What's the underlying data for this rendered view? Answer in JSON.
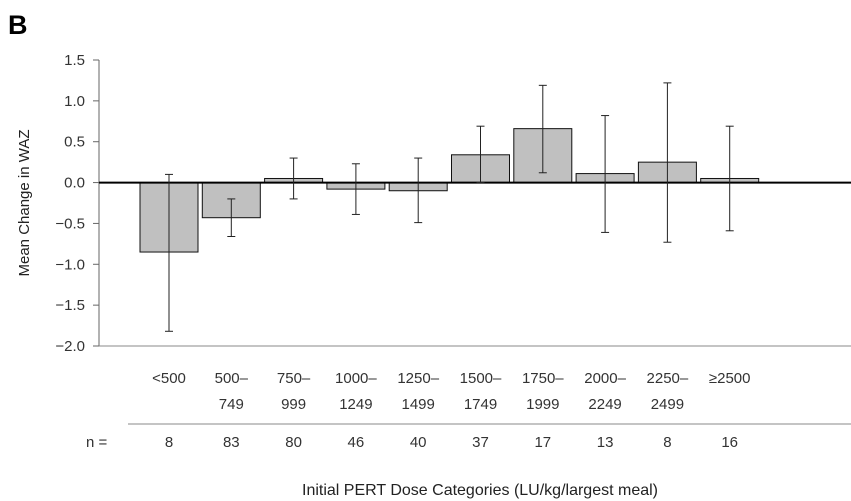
{
  "panel_label": "B",
  "n_label": "n =",
  "chart_data": {
    "type": "bar",
    "title": "",
    "ylabel": "Mean Change in WAZ",
    "xlabel": "Initial PERT Dose Categories (LU/kg/largest meal)",
    "ylim": [
      -2.0,
      1.5
    ],
    "yticks": [
      "1.5",
      "1.0",
      "0.5",
      "0.0",
      "−0.5",
      "−1.0",
      "−1.5",
      "−2.0"
    ],
    "ytick_values": [
      1.5,
      1.0,
      0.5,
      0.0,
      -0.5,
      -1.0,
      -1.5,
      -2.0
    ],
    "grid": false,
    "bar_color": "#c0c0c0",
    "categories": [
      {
        "line1": "<500",
        "line2": ""
      },
      {
        "line1": "500–",
        "line2": "749"
      },
      {
        "line1": "750–",
        "line2": "999"
      },
      {
        "line1": "1000–",
        "line2": "1249"
      },
      {
        "line1": "1250–",
        "line2": "1499"
      },
      {
        "line1": "1500–",
        "line2": "1749"
      },
      {
        "line1": "1750–",
        "line2": "1999"
      },
      {
        "line1": "2000–",
        "line2": "2249"
      },
      {
        "line1": "2250–",
        "line2": "2499"
      },
      {
        "line1": "≥2500",
        "line2": ""
      }
    ],
    "values": [
      -0.85,
      -0.43,
      0.05,
      -0.08,
      -0.1,
      0.34,
      0.66,
      0.11,
      0.25,
      0.05
    ],
    "error_low": [
      -1.82,
      -0.66,
      -0.2,
      -0.39,
      -0.49,
      0.0,
      0.12,
      -0.61,
      -0.73,
      -0.59
    ],
    "error_high": [
      0.1,
      -0.2,
      0.3,
      0.23,
      0.3,
      0.69,
      1.19,
      0.82,
      1.22,
      0.69
    ],
    "n": [
      "8",
      "83",
      "80",
      "46",
      "40",
      "37",
      "17",
      "13",
      "8",
      "16"
    ]
  }
}
